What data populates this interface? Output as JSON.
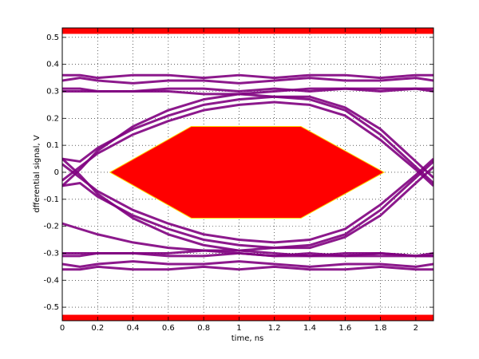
{
  "chart_data": {
    "type": "eye",
    "xlabel": "time, ns",
    "ylabel": "dfferential signal, V",
    "xlim": [
      0,
      2.1
    ],
    "ylim": [
      -0.55,
      0.535
    ],
    "xticks": [
      0,
      0.2,
      0.4,
      0.6,
      0.8,
      1,
      1.2,
      1.4,
      1.6,
      1.8,
      2
    ],
    "yticks": [
      -0.5,
      -0.4,
      -0.3,
      -0.2,
      -0.1,
      0,
      0.1,
      0.2,
      0.3,
      0.4,
      0.5
    ],
    "grid": true,
    "x": [
      0,
      0.1,
      0.2,
      0.4,
      0.6,
      0.8,
      1.0,
      1.2,
      1.4,
      1.6,
      1.8,
      2.0,
      2.1
    ],
    "series": [
      {
        "color": "#800080",
        "values": [
          0.31,
          0.31,
          0.3,
          0.3,
          0.31,
          0.31,
          0.3,
          0.31,
          0.3,
          0.31,
          0.3,
          0.31,
          0.3
        ]
      },
      {
        "color": "#800080",
        "values": [
          0.34,
          0.35,
          0.34,
          0.33,
          0.34,
          0.34,
          0.33,
          0.34,
          0.35,
          0.34,
          0.34,
          0.35,
          0.34
        ]
      },
      {
        "color": "#800080",
        "values": [
          0.36,
          0.36,
          0.35,
          0.36,
          0.36,
          0.35,
          0.36,
          0.35,
          0.36,
          0.36,
          0.35,
          0.36,
          0.36
        ]
      },
      {
        "color": "#800080",
        "values": [
          -0.31,
          -0.31,
          -0.3,
          -0.3,
          -0.31,
          -0.31,
          -0.3,
          -0.31,
          -0.3,
          -0.31,
          -0.3,
          -0.31,
          -0.3
        ]
      },
      {
        "color": "#800080",
        "values": [
          -0.34,
          -0.35,
          -0.34,
          -0.33,
          -0.34,
          -0.34,
          -0.33,
          -0.34,
          -0.35,
          -0.34,
          -0.34,
          -0.35,
          -0.34
        ]
      },
      {
        "color": "#800080",
        "values": [
          -0.36,
          -0.36,
          -0.35,
          -0.36,
          -0.36,
          -0.35,
          -0.36,
          -0.35,
          -0.36,
          -0.36,
          -0.35,
          -0.36,
          -0.36
        ]
      },
      {
        "color": "#800080",
        "values": [
          -0.03,
          0.02,
          0.07,
          0.14,
          0.19,
          0.23,
          0.25,
          0.26,
          0.25,
          0.21,
          0.12,
          0.01,
          -0.05
        ]
      },
      {
        "color": "#800080",
        "values": [
          0.05,
          0.04,
          0.09,
          0.16,
          0.21,
          0.25,
          0.27,
          0.28,
          0.28,
          0.24,
          0.16,
          0.04,
          -0.02
        ]
      },
      {
        "color": "#800080",
        "values": [
          -0.05,
          0.01,
          0.08,
          0.17,
          0.23,
          0.27,
          0.29,
          0.3,
          0.31,
          0.31,
          0.31,
          0.31,
          0.31
        ]
      },
      {
        "color": "#800080",
        "values": [
          0.3,
          0.3,
          0.3,
          0.3,
          0.3,
          0.29,
          0.29,
          0.28,
          0.27,
          0.23,
          0.14,
          0.02,
          -0.04
        ]
      },
      {
        "color": "#800080",
        "values": [
          0.03,
          -0.02,
          -0.07,
          -0.14,
          -0.19,
          -0.23,
          -0.25,
          -0.26,
          -0.25,
          -0.21,
          -0.12,
          -0.01,
          0.05
        ]
      },
      {
        "color": "#800080",
        "values": [
          -0.05,
          -0.04,
          -0.09,
          -0.16,
          -0.21,
          -0.25,
          -0.27,
          -0.28,
          -0.28,
          -0.24,
          -0.16,
          -0.04,
          0.02
        ]
      },
      {
        "color": "#800080",
        "values": [
          0.05,
          -0.01,
          -0.08,
          -0.17,
          -0.23,
          -0.27,
          -0.29,
          -0.3,
          -0.31,
          -0.31,
          -0.31,
          -0.31,
          -0.31
        ]
      },
      {
        "color": "#800080",
        "values": [
          -0.3,
          -0.3,
          -0.3,
          -0.3,
          -0.3,
          -0.29,
          -0.29,
          -0.28,
          -0.27,
          -0.23,
          -0.14,
          -0.02,
          0.04
        ]
      },
      {
        "color": "#800080",
        "values": [
          -0.19,
          -0.21,
          -0.23,
          -0.26,
          -0.28,
          -0.29,
          -0.3,
          -0.31,
          -0.31,
          -0.3,
          -0.3,
          -0.31,
          -0.31
        ]
      }
    ],
    "mask": {
      "color": "#ff0000",
      "x": [
        0.27,
        0.73,
        1.35,
        1.82,
        1.35,
        0.73
      ],
      "y": [
        0,
        0.17,
        0.17,
        0,
        -0.17,
        -0.17
      ]
    },
    "bands": [
      {
        "color": "#ff0000",
        "range": [
          0.513,
          0.535
        ]
      },
      {
        "color": "#ff0000",
        "range": [
          -0.55,
          -0.528
        ]
      }
    ]
  }
}
